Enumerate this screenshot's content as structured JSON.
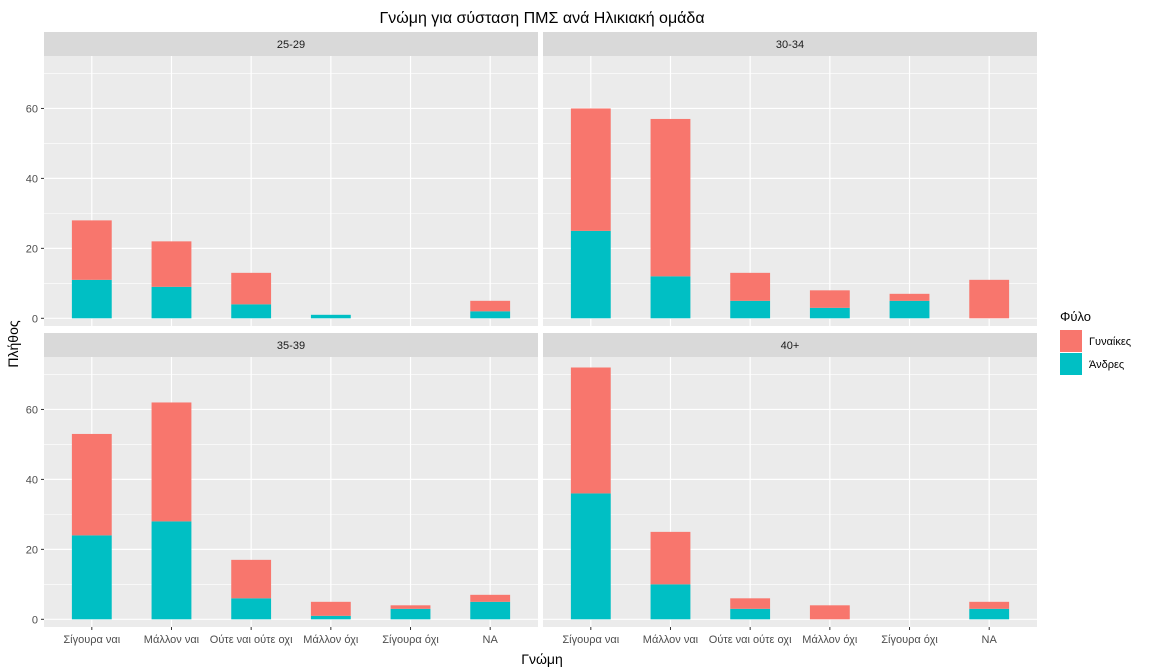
{
  "chart_data": {
    "type": "bar",
    "stacked": true,
    "title": "Γνώμη για σύσταση ΠΜΣ ανά Ηλικιακή ομάδα",
    "xlabel": "Γνώμη",
    "ylabel": "Πλήθος",
    "ylim": [
      0,
      75
    ],
    "yticks": [
      0,
      20,
      40,
      60
    ],
    "categories": [
      "Σίγουρα ναι",
      "Μάλλον ναι",
      "Ούτε ναι ούτε οχι",
      "Μάλλον όχι",
      "Σίγουρα όχι",
      "NA"
    ],
    "legend": {
      "title": "Φύλο",
      "placement": "right",
      "entries": [
        {
          "name": "Γυναίκες",
          "color": "#F8766D"
        },
        {
          "name": "Άνδρες",
          "color": "#00BFC4"
        }
      ]
    },
    "panels": [
      {
        "label": "25-29",
        "series": [
          {
            "name": "Άνδρες",
            "values": [
              11,
              9,
              4,
              1,
              0,
              2
            ]
          },
          {
            "name": "Γυναίκες",
            "values": [
              17,
              13,
              9,
              0,
              0,
              3
            ]
          }
        ]
      },
      {
        "label": "30-34",
        "series": [
          {
            "name": "Άνδρες",
            "values": [
              25,
              12,
              5,
              3,
              5,
              0
            ]
          },
          {
            "name": "Γυναίκες",
            "values": [
              35,
              45,
              8,
              5,
              2,
              11
            ]
          }
        ]
      },
      {
        "label": "35-39",
        "series": [
          {
            "name": "Άνδρες",
            "values": [
              24,
              28,
              6,
              1,
              3,
              5
            ]
          },
          {
            "name": "Γυναίκες",
            "values": [
              29,
              34,
              11,
              4,
              1,
              2
            ]
          }
        ]
      },
      {
        "label": "40+",
        "series": [
          {
            "name": "Άνδρες",
            "values": [
              36,
              10,
              3,
              0,
              0,
              3
            ]
          },
          {
            "name": "Γυναίκες",
            "values": [
              36,
              15,
              3,
              4,
              0,
              2
            ]
          }
        ]
      }
    ]
  }
}
